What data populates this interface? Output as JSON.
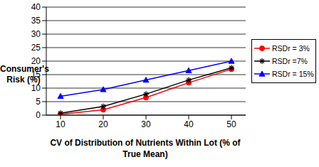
{
  "chart_data": {
    "type": "line",
    "x_label": "CV of Distribution of Nutrients Within Lot (% of True Mean)",
    "y_label": "Consumer's Risk (%)",
    "categories": [
      "10",
      "20",
      "30",
      "40",
      "50"
    ],
    "series": [
      {
        "name": "RSDr = 3%",
        "color": "#ff0000",
        "marker": "circle",
        "values": [
          0.3,
          2,
          6.5,
          12,
          17
        ]
      },
      {
        "name": "RSDr =7%",
        "color": "#000000",
        "marker": "star",
        "values": [
          0.7,
          3.2,
          7.8,
          13,
          17.5
        ]
      },
      {
        "name": "RSDr = 15%",
        "color": "#0000ff",
        "marker": "triangle",
        "values": [
          7,
          9.5,
          13,
          16.5,
          20
        ]
      }
    ],
    "ylim": [
      0,
      40
    ],
    "yticks": [
      0,
      5,
      10,
      15,
      20,
      25,
      30,
      35,
      40
    ],
    "grid": true,
    "legend": "right"
  }
}
